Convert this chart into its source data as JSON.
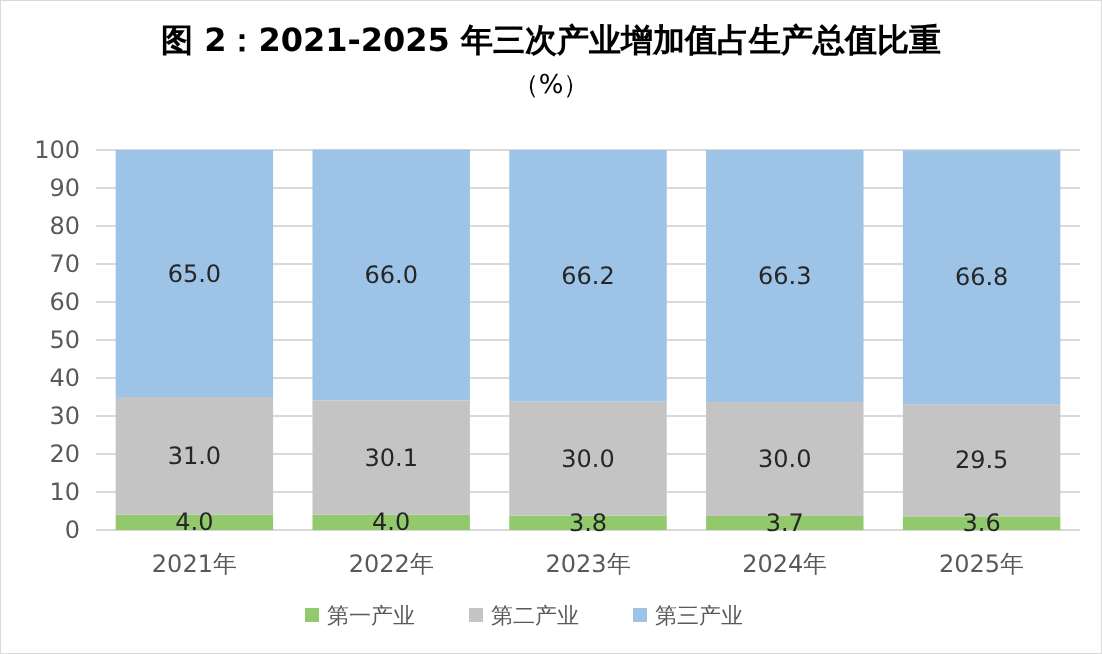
{
  "chart_data": {
    "type": "bar",
    "stacked": true,
    "title": "图 2：2021-2025 年三次产业增加值占生产总值比重",
    "subtitle": "（%）",
    "categories": [
      "2021年",
      "2022年",
      "2023年",
      "2024年",
      "2025年"
    ],
    "series": [
      {
        "name": "第一产业",
        "color": "#92c96c",
        "values": [
          4.0,
          4.0,
          3.8,
          3.7,
          3.6
        ],
        "value_labels": [
          "4.0",
          "4.0",
          "3.8",
          "3.7",
          "3.6"
        ]
      },
      {
        "name": "第二产业",
        "color": "#c4c4c4",
        "values": [
          31.0,
          30.1,
          30.0,
          30.0,
          29.5
        ],
        "value_labels": [
          "31.0",
          "30.1",
          "30.0",
          "30.0",
          "29.5"
        ]
      },
      {
        "name": "第三产业",
        "color": "#9dc3e6",
        "values": [
          65.0,
          66.0,
          66.2,
          66.3,
          66.8
        ],
        "value_labels": [
          "65.0",
          "66.0",
          "66.2",
          "66.3",
          "66.8"
        ]
      }
    ],
    "ylim": [
      0,
      100
    ],
    "yticks": [
      0,
      10,
      20,
      30,
      40,
      50,
      60,
      70,
      80,
      90,
      100
    ],
    "grid": "y",
    "legend": "bottom"
  }
}
